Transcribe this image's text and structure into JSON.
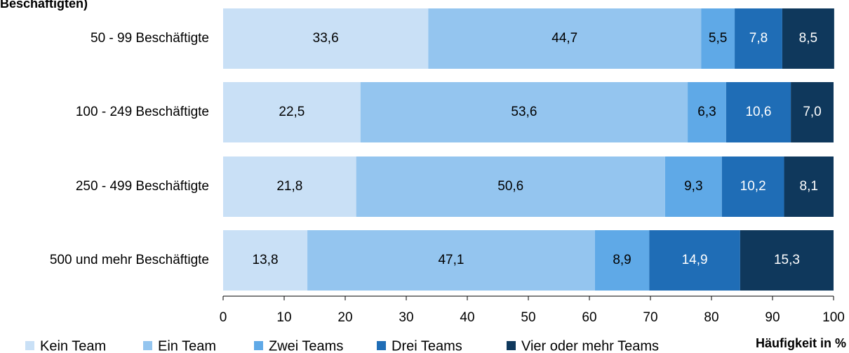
{
  "chart_data": {
    "type": "stacked_bar_horizontal",
    "title": "Beschäftigten)",
    "x_axis_label": "Häufigkeit in %",
    "categories": [
      "50 - 99 Beschäftigte",
      "100 - 249 Beschäftigte",
      "250 - 499 Beschäftigte",
      "500 und mehr Beschäftigte"
    ],
    "series": [
      {
        "name": "Kein Team",
        "color": "#c9e0f6",
        "values": [
          33.6,
          22.5,
          21.8,
          13.8
        ],
        "value_labels": [
          "33,6",
          "22,5",
          "21,8",
          "13,8"
        ]
      },
      {
        "name": "Ein Team",
        "color": "#94c5ef",
        "values": [
          44.7,
          53.6,
          50.6,
          47.1
        ],
        "value_labels": [
          "44,7",
          "53,6",
          "50,6",
          "47,1"
        ]
      },
      {
        "name": "Zwei Teams",
        "color": "#5fa9e7",
        "values": [
          5.5,
          6.3,
          9.3,
          8.9
        ],
        "value_labels": [
          "5,5",
          "6,3",
          "9,3",
          "8,9"
        ]
      },
      {
        "name": "Drei Teams",
        "color": "#1f6db6",
        "values": [
          7.8,
          10.6,
          10.2,
          14.9
        ],
        "value_labels": [
          "7,8",
          "10,6",
          "10,2",
          "14,9"
        ]
      },
      {
        "name": "Vier oder mehr Teams",
        "color": "#0f385c",
        "values": [
          8.5,
          7.0,
          8.1,
          15.3
        ],
        "value_labels": [
          "8,5",
          "7,0",
          "8,1",
          "15,3"
        ]
      }
    ],
    "xlim": [
      0,
      100
    ],
    "xticks": [
      0,
      10,
      20,
      30,
      40,
      50,
      60,
      70,
      80,
      90,
      100
    ],
    "legend": "bottom"
  }
}
